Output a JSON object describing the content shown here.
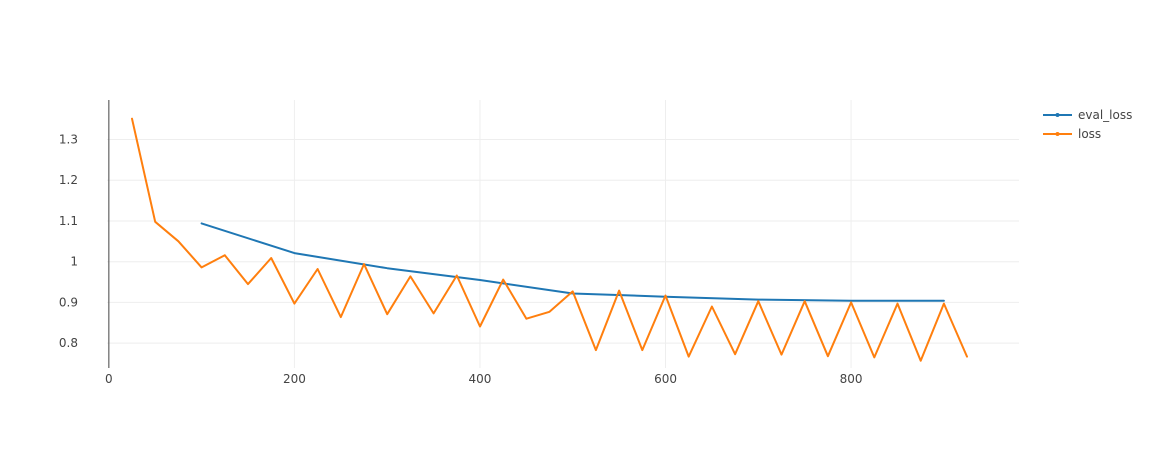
{
  "chart_data": {
    "type": "line",
    "title": "",
    "xlabel": "",
    "ylabel": "",
    "xlim": [
      -2,
      981
    ],
    "ylim": [
      0.739,
      1.397
    ],
    "x_ticks": [
      0,
      200,
      400,
      600,
      800
    ],
    "y_ticks": [
      0.8,
      0.9,
      1.0,
      1.1,
      1.2,
      1.3
    ],
    "x_tick_labels": [
      "0",
      "200",
      "400",
      "600",
      "800"
    ],
    "y_tick_labels": [
      "0.8",
      "0.9",
      "1",
      "1.1",
      "1.2",
      "1.3"
    ],
    "grid": true,
    "legend_position": "top-right",
    "series": [
      {
        "name": "eval_loss",
        "color": "#1f77b4",
        "x": [
          100,
          200,
          300,
          400,
          500,
          600,
          700,
          800,
          900
        ],
        "y": [
          1.094,
          1.021,
          0.984,
          0.955,
          0.922,
          0.914,
          0.907,
          0.904,
          0.904
        ]
      },
      {
        "name": "loss",
        "color": "#ff7f0e",
        "x": [
          25,
          50,
          75,
          100,
          125,
          150,
          175,
          200,
          225,
          250,
          275,
          300,
          325,
          350,
          375,
          400,
          425,
          450,
          475,
          500,
          525,
          550,
          575,
          600,
          625,
          650,
          675,
          700,
          725,
          750,
          775,
          800,
          825,
          850,
          875,
          900,
          925
        ],
        "y": [
          1.351,
          1.098,
          1.05,
          0.986,
          1.016,
          0.945,
          1.009,
          0.897,
          0.982,
          0.864,
          0.994,
          0.871,
          0.964,
          0.873,
          0.966,
          0.841,
          0.956,
          0.86,
          0.877,
          0.927,
          0.783,
          0.929,
          0.783,
          0.917,
          0.767,
          0.89,
          0.773,
          0.903,
          0.772,
          0.903,
          0.768,
          0.9,
          0.765,
          0.897,
          0.757,
          0.897,
          0.767
        ]
      }
    ]
  }
}
